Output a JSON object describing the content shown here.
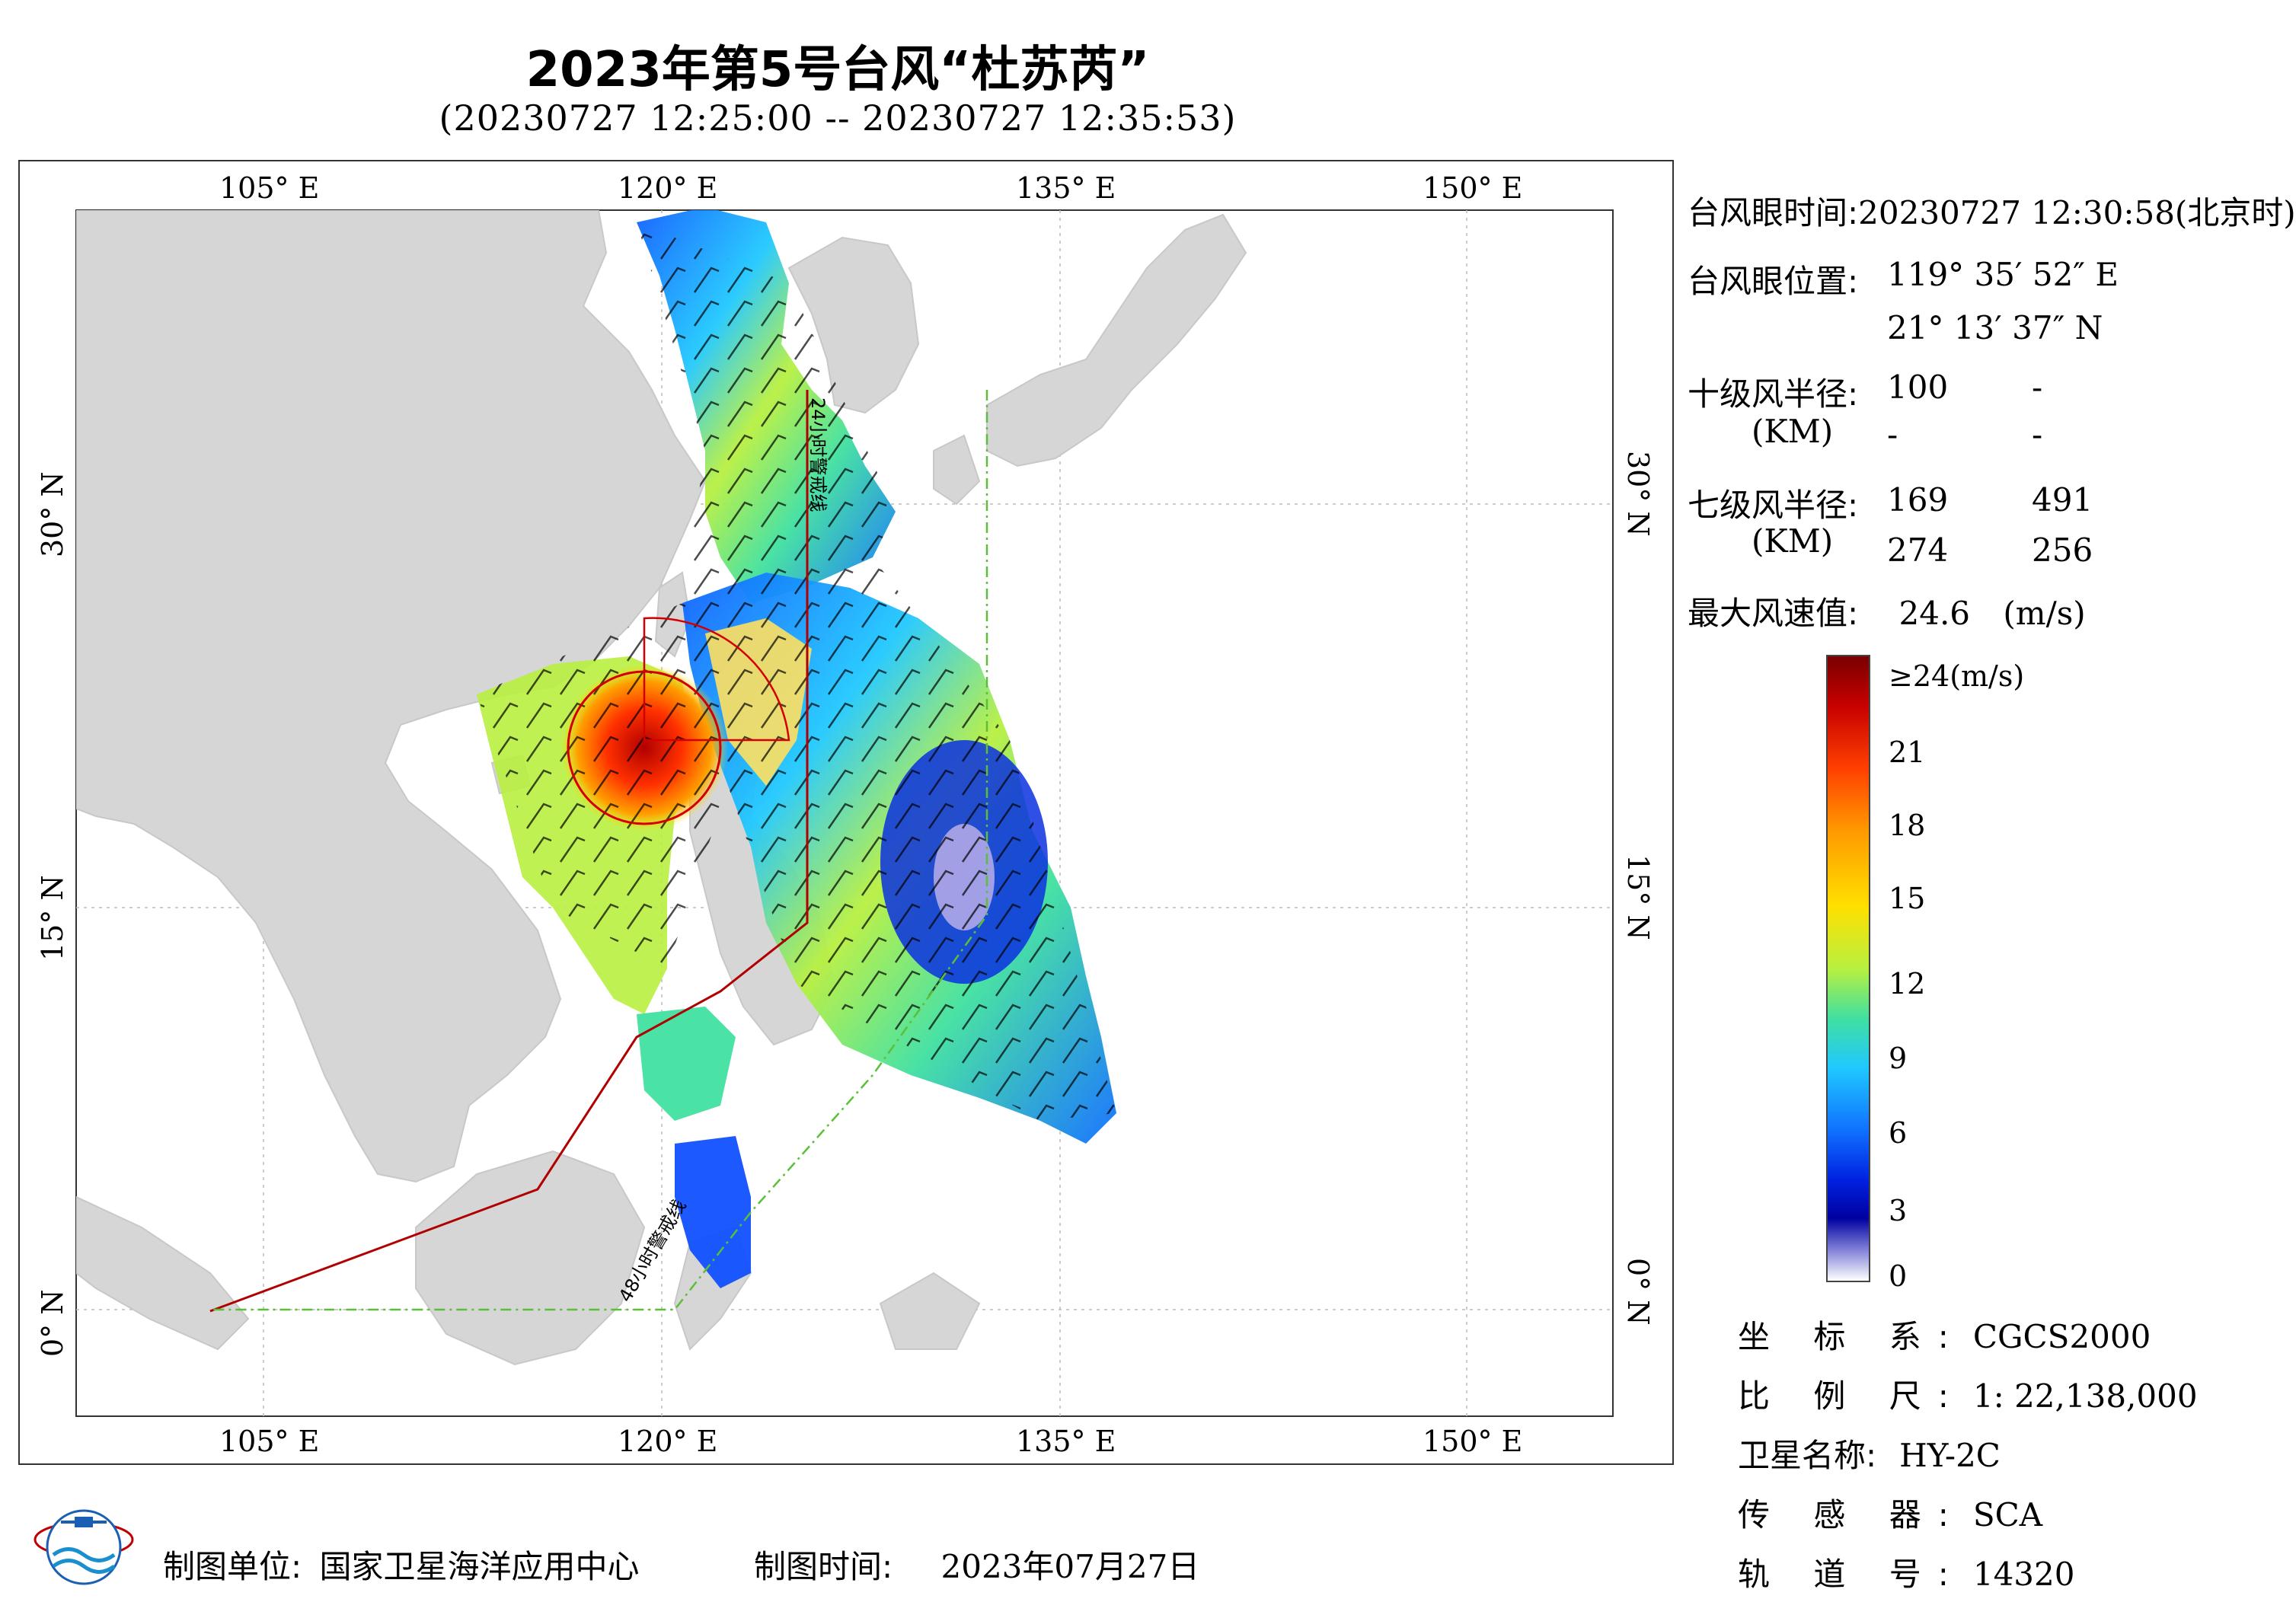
{
  "header": {
    "title": "2023年第5号台风“杜苏芮”",
    "subtitle": "(20230727 12:25:00 -- 20230727 12:35:53)"
  },
  "map": {
    "lon_ticks": [
      "105° E",
      "120° E",
      "135° E",
      "150° E"
    ],
    "lat_ticks": [
      "30° N",
      "15° N",
      "0° N"
    ],
    "line_24h_label": "24小时警戒线",
    "line_48h_label": "48小时警戒线",
    "colors": {
      "land": "#d6d6d6",
      "sea": "#ffffff",
      "warn24": "#b00000",
      "warn48": "#5bbf3a",
      "circle": "#d40000"
    }
  },
  "info": {
    "eye_time_label": "台风眼时间:",
    "eye_time_value": "20230727 12:30:58(北京时)",
    "eye_pos_label": "台风眼位置:",
    "eye_lon": "119° 35′ 52″ E",
    "eye_lat": "21° 13′ 37″ N",
    "r10_label": "十级风半径:",
    "r10_unit": "(KM)",
    "r10_values": [
      "100",
      "-",
      "-",
      "-"
    ],
    "r7_label": "七级风半径:",
    "r7_unit": "(KM)",
    "r7_values": [
      "169",
      "491",
      "274",
      "256"
    ],
    "max_wind_label": "最大风速值:",
    "max_wind_value": "24.6",
    "max_wind_unit": "(m/s)"
  },
  "legend": {
    "labels": [
      "≥24(m/s)",
      "21",
      "18",
      "15",
      "12",
      "9",
      "6",
      "3",
      "0"
    ],
    "stops": [
      "#7a0000",
      "#c80000",
      "#ff4000",
      "#ff9a00",
      "#ffe000",
      "#b8f040",
      "#40e0a0",
      "#20c8ff",
      "#1070ff",
      "#0020e0",
      "#0000a0",
      "#8080d8",
      "#ffffff"
    ]
  },
  "meta": {
    "crs_label": "坐 标 系:",
    "crs_value": "CGCS2000",
    "scale_label": "比 例 尺:",
    "scale_value": "1: 22,138,000",
    "satellite_label": "卫星名称:",
    "satellite_value": "HY-2C",
    "sensor_label": "传 感 器:",
    "sensor_value": "SCA",
    "orbit_label": "轨 道 号:",
    "orbit_value": "14320"
  },
  "footer": {
    "producer_label": "制图单位:",
    "producer_value": "国家卫星海洋应用中心",
    "date_label": "制图时间:",
    "date_value": "2023年07月27日"
  }
}
